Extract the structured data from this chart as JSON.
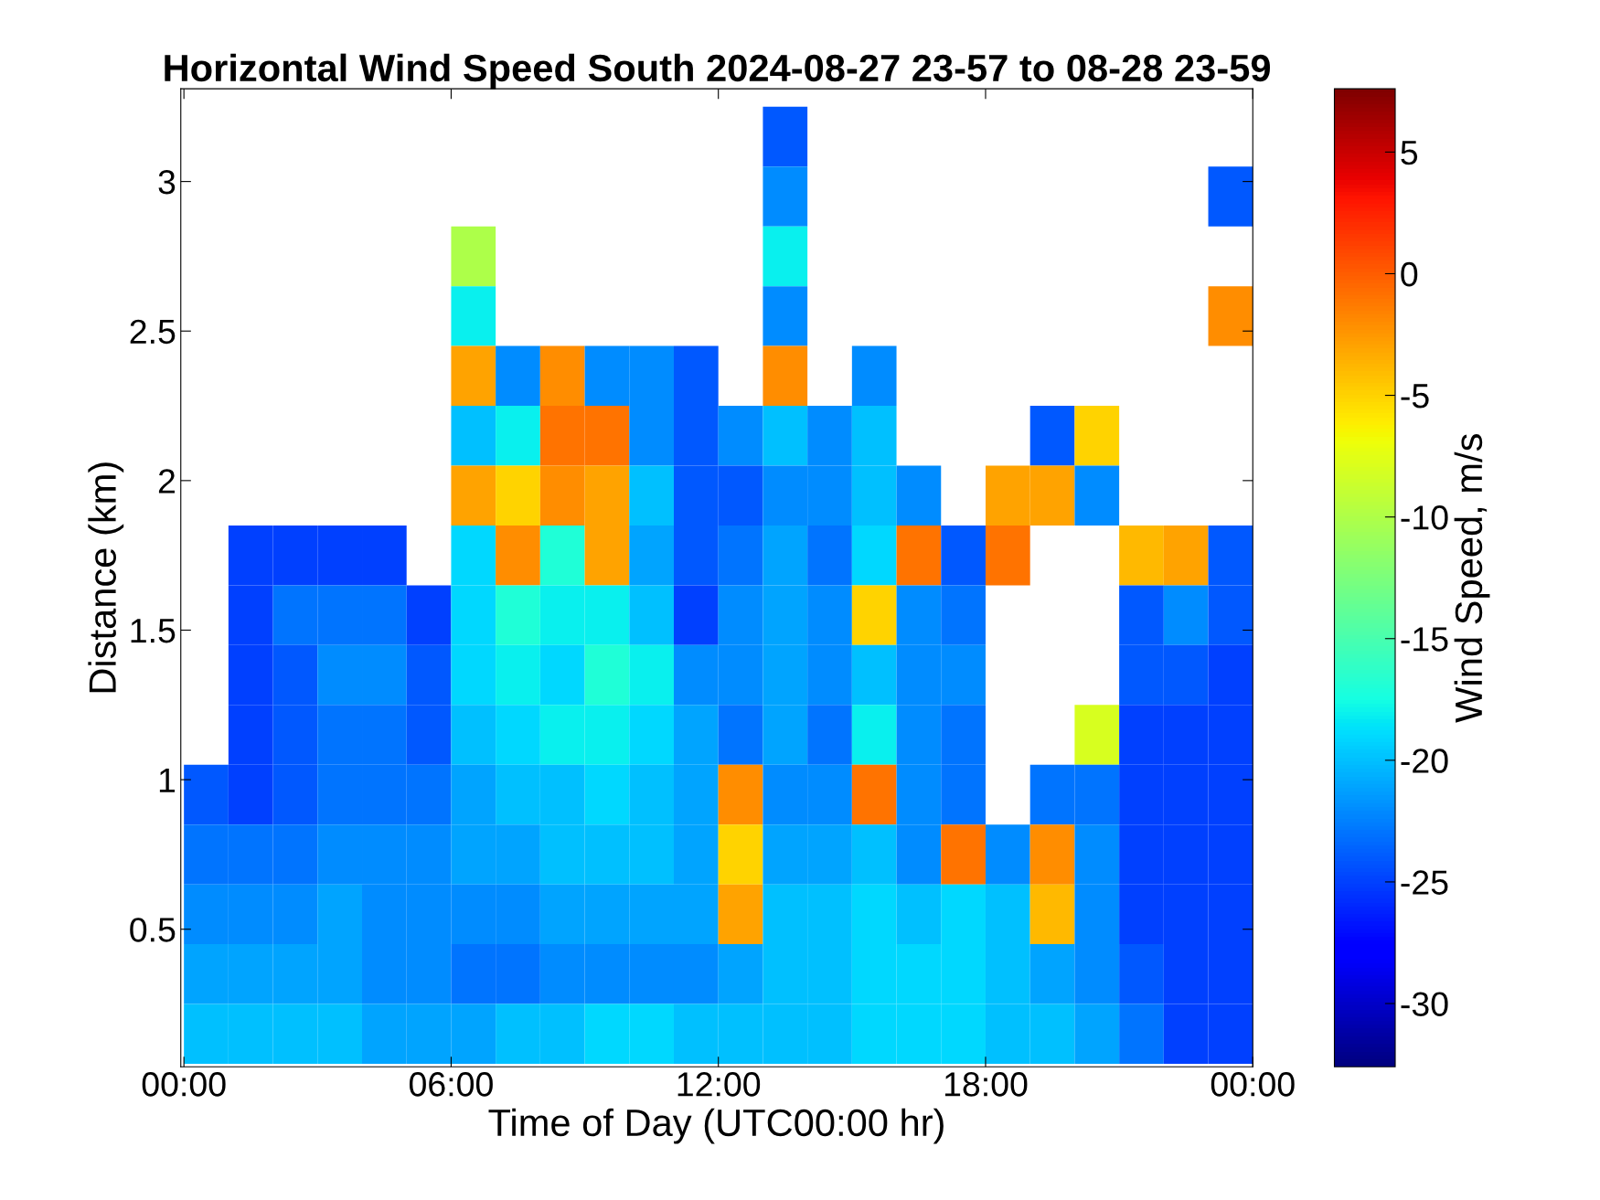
{
  "chart_data": {
    "type": "heatmap",
    "title": "Horizontal Wind Speed South 2024-08-27 23-57 to 08-28 23-59",
    "xlabel": "Time of Day (UTC00:00 hr)",
    "ylabel": "Distance (km)",
    "clabel": "Wind Speed, m/s",
    "x": [
      0.5,
      1.5,
      2.5,
      3.5,
      4.5,
      5.5,
      6.5,
      7.5,
      8.5,
      9.5,
      10.5,
      11.5,
      12.5,
      13.5,
      14.5,
      15.5,
      16.5,
      17.5,
      18.5,
      19.5,
      20.5,
      21.5,
      22.5,
      23.5
    ],
    "y": [
      3.15,
      2.95,
      2.75,
      2.55,
      2.35,
      2.15,
      1.95,
      1.75,
      1.55,
      1.35,
      1.15,
      0.95,
      0.75,
      0.55,
      0.35,
      0.15
    ],
    "cells": [
      [
        null,
        null,
        null,
        null,
        null,
        null,
        null,
        null,
        null,
        null,
        null,
        null,
        null,
        -24,
        null,
        null,
        null,
        null,
        null,
        null,
        null,
        null,
        null,
        null
      ],
      [
        null,
        null,
        null,
        null,
        null,
        null,
        null,
        null,
        null,
        null,
        null,
        null,
        null,
        -22,
        null,
        null,
        null,
        null,
        null,
        null,
        null,
        null,
        null,
        -24
      ],
      [
        null,
        null,
        null,
        null,
        null,
        null,
        -10,
        null,
        null,
        null,
        null,
        null,
        null,
        -18,
        null,
        null,
        null,
        null,
        null,
        null,
        null,
        null,
        null,
        null
      ],
      [
        null,
        null,
        null,
        null,
        null,
        null,
        -18,
        null,
        null,
        null,
        null,
        null,
        null,
        -22,
        null,
        null,
        null,
        null,
        null,
        null,
        null,
        null,
        null,
        -2
      ],
      [
        null,
        null,
        null,
        null,
        null,
        null,
        -3,
        -22,
        -2,
        -22,
        -22,
        -24,
        null,
        -2,
        null,
        -22,
        null,
        null,
        null,
        null,
        null,
        null,
        null,
        null
      ],
      [
        null,
        null,
        null,
        null,
        null,
        null,
        -20,
        -18,
        -1,
        -1,
        -22,
        -24,
        -22,
        -20,
        -22,
        -20,
        null,
        null,
        null,
        -24,
        -5,
        null,
        null,
        null
      ],
      [
        null,
        null,
        null,
        null,
        null,
        null,
        -3,
        -5,
        -2,
        -3,
        -20,
        -24,
        -24,
        -22,
        -22,
        -20,
        -22,
        null,
        -3,
        -3,
        -22,
        null,
        null,
        null
      ],
      [
        null,
        -25,
        -25,
        -25,
        -25,
        null,
        -19,
        -2,
        -17,
        -3,
        -21,
        -24,
        -23,
        -21,
        -23,
        -19,
        -1,
        -24,
        -1,
        null,
        null,
        -4,
        -3,
        -24
      ],
      [
        null,
        -25,
        -23,
        -23,
        -23,
        -25,
        -19,
        -17,
        -18,
        -18,
        -20,
        -25,
        -22,
        -21,
        -22,
        -5,
        -22,
        -23,
        null,
        null,
        null,
        -24,
        -22,
        -24
      ],
      [
        null,
        -25,
        -24,
        -22,
        -22,
        -24,
        -19,
        -18,
        -19,
        -17,
        -18,
        -22,
        -22,
        -21,
        -22,
        -20,
        -22,
        -22,
        null,
        null,
        null,
        -24,
        -24,
        -25
      ],
      [
        null,
        -25,
        -24,
        -23,
        -23,
        -24,
        -20,
        -19,
        -18,
        -18,
        -19,
        -21,
        -23,
        -21,
        -23,
        -18,
        -22,
        -23,
        null,
        null,
        -8,
        -25,
        -25,
        -25
      ],
      [
        -24,
        -25,
        -24,
        -23,
        -23,
        -23,
        -21,
        -20,
        -20,
        -19,
        -20,
        -21,
        -2,
        -22,
        -22,
        -1,
        -22,
        -23,
        null,
        -23,
        -23,
        -25,
        -25,
        -25
      ],
      [
        -23,
        -23,
        -23,
        -22,
        -22,
        -22,
        -21,
        -21,
        -20,
        -20,
        -20,
        -21,
        -5,
        -21,
        -21,
        -20,
        -22,
        -1,
        -22,
        -2,
        -22,
        -25,
        -25,
        -25
      ],
      [
        -22,
        -22,
        -22,
        -21,
        -22,
        -22,
        -22,
        -22,
        -21,
        -21,
        -21,
        -21,
        -3,
        -20,
        -20,
        -19,
        -20,
        -19,
        -20,
        -4,
        -22,
        -25,
        -25,
        -25
      ],
      [
        -21,
        -21,
        -21,
        -21,
        -22,
        -22,
        -23,
        -23,
        -22,
        -22,
        -22,
        -22,
        -21,
        -20,
        -20,
        -19,
        -19,
        -19,
        -20,
        -21,
        -22,
        -24,
        -25,
        -25
      ],
      [
        -20,
        -20,
        -20,
        -20,
        -21,
        -21,
        -21,
        -20,
        -20,
        -19,
        -19,
        -20,
        -20,
        -20,
        -20,
        -19,
        -19,
        -19,
        -20,
        -20,
        -21,
        -23,
        -25,
        -25
      ]
    ],
    "xlim": [
      -0.07,
      24
    ],
    "xticks": [
      {
        "value": 0,
        "label": "00:00"
      },
      {
        "value": 6,
        "label": "06:00"
      },
      {
        "value": 12,
        "label": "12:00"
      },
      {
        "value": 18,
        "label": "18:00"
      },
      {
        "value": 24,
        "label": "00:00"
      }
    ],
    "ylim": [
      0.04,
      3.31
    ],
    "yticks": [
      0.5,
      1,
      1.5,
      2,
      2.5,
      3
    ],
    "clim": [
      -32.6,
      7.6
    ],
    "cticks": [
      -30,
      -25,
      -20,
      -15,
      -10,
      -5,
      0,
      5
    ]
  }
}
